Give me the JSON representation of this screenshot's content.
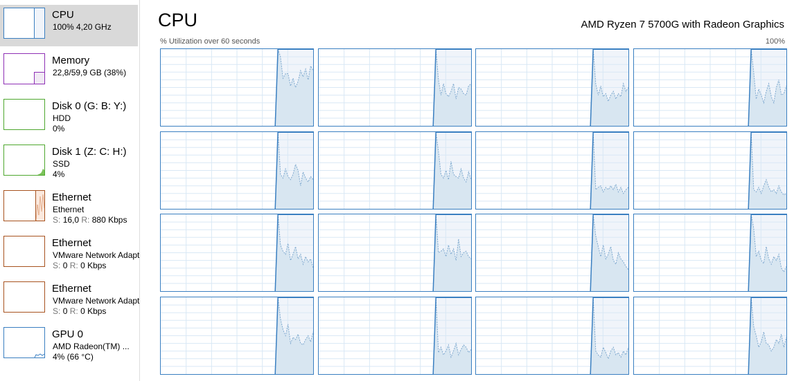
{
  "sidebar": {
    "items": [
      {
        "title": "CPU",
        "line2": "100% 4,20 GHz",
        "line3": "",
        "color": "#3a7fc1",
        "selected": true
      },
      {
        "title": "Memory",
        "line2": "22,8/59,9 GB (38%)",
        "line3": "",
        "color": "#8e2fb5"
      },
      {
        "title": "Disk 0 (G: B: Y:)",
        "line2": "HDD",
        "line3": "0%",
        "color": "#4ea72e"
      },
      {
        "title": "Disk 1 (Z: C: H:)",
        "line2": "SSD",
        "line3": "4%",
        "color": "#4ea72e"
      },
      {
        "title": "Ethernet",
        "line2": "Ethernet",
        "s": "S:",
        "sv": "16,0",
        "r": "R:",
        "rv": "880 Kbps",
        "color": "#a7521e"
      },
      {
        "title": "Ethernet",
        "line2": "VMware Network Adapter",
        "s": "S:",
        "sv": "0",
        "r": "R:",
        "rv": "0 Kbps",
        "color": "#a7521e"
      },
      {
        "title": "Ethernet",
        "line2": "VMware Network Adapter",
        "s": "S:",
        "sv": "0",
        "r": "R:",
        "rv": "0 Kbps",
        "color": "#a7521e"
      },
      {
        "title": "GPU 0",
        "line2": "AMD Radeon(TM) ...",
        "line3": "4%  (66 °C)",
        "color": "#3a7fc1"
      }
    ]
  },
  "header": {
    "title": "CPU",
    "model": "AMD Ryzen 7 5700G with Radeon Graphics",
    "util_label": "% Utilization over 60 seconds",
    "max_label": "100%"
  },
  "colors": {
    "accent": "#3a7fc1",
    "fill": "#d8e6f1",
    "shade": "#f0f4fa",
    "grid": "#d9e8f5"
  },
  "cores": [
    [
      100,
      90,
      62,
      68,
      68,
      52,
      62,
      50,
      58,
      72,
      64,
      74,
      60,
      78,
      72
    ],
    [
      100,
      60,
      40,
      55,
      42,
      38,
      45,
      55,
      35,
      50,
      48,
      42,
      40,
      52,
      55
    ],
    [
      100,
      55,
      40,
      52,
      38,
      42,
      32,
      40,
      45,
      35,
      42,
      38,
      55,
      45,
      50
    ],
    [
      100,
      70,
      35,
      48,
      40,
      30,
      45,
      55,
      38,
      30,
      50,
      60,
      40,
      42,
      52
    ],
    [
      100,
      45,
      40,
      52,
      42,
      38,
      45,
      58,
      50,
      30,
      48,
      40,
      35,
      42,
      38
    ],
    [
      100,
      75,
      45,
      40,
      50,
      38,
      62,
      45,
      42,
      40,
      52,
      40,
      35,
      48,
      38
    ],
    [
      100,
      25,
      28,
      30,
      22,
      28,
      25,
      30,
      25,
      32,
      22,
      28,
      20,
      25,
      28
    ],
    [
      100,
      25,
      22,
      28,
      20,
      30,
      38,
      28,
      22,
      25,
      20,
      30,
      22,
      18,
      20
    ],
    [
      100,
      60,
      52,
      48,
      62,
      40,
      48,
      58,
      42,
      48,
      35,
      45,
      38,
      42,
      30
    ],
    [
      100,
      50,
      52,
      55,
      45,
      60,
      48,
      55,
      40,
      68,
      45,
      50,
      52,
      45,
      42
    ],
    [
      100,
      72,
      58,
      45,
      60,
      42,
      48,
      58,
      40,
      35,
      50,
      42,
      38,
      32,
      28
    ],
    [
      100,
      82,
      45,
      52,
      40,
      36,
      58,
      42,
      35,
      45,
      40,
      48,
      30,
      25,
      32
    ],
    [
      100,
      72,
      58,
      50,
      65,
      40,
      48,
      45,
      52,
      40,
      38,
      45,
      50,
      42,
      55
    ],
    [
      100,
      28,
      35,
      25,
      30,
      38,
      22,
      30,
      40,
      25,
      32,
      38,
      35,
      28,
      32
    ],
    [
      100,
      30,
      25,
      22,
      35,
      28,
      20,
      30,
      35,
      25,
      28,
      22,
      30,
      25,
      35
    ],
    [
      100,
      62,
      50,
      35,
      42,
      55,
      40,
      38,
      30,
      35,
      45,
      40,
      52,
      35,
      48
    ]
  ]
}
